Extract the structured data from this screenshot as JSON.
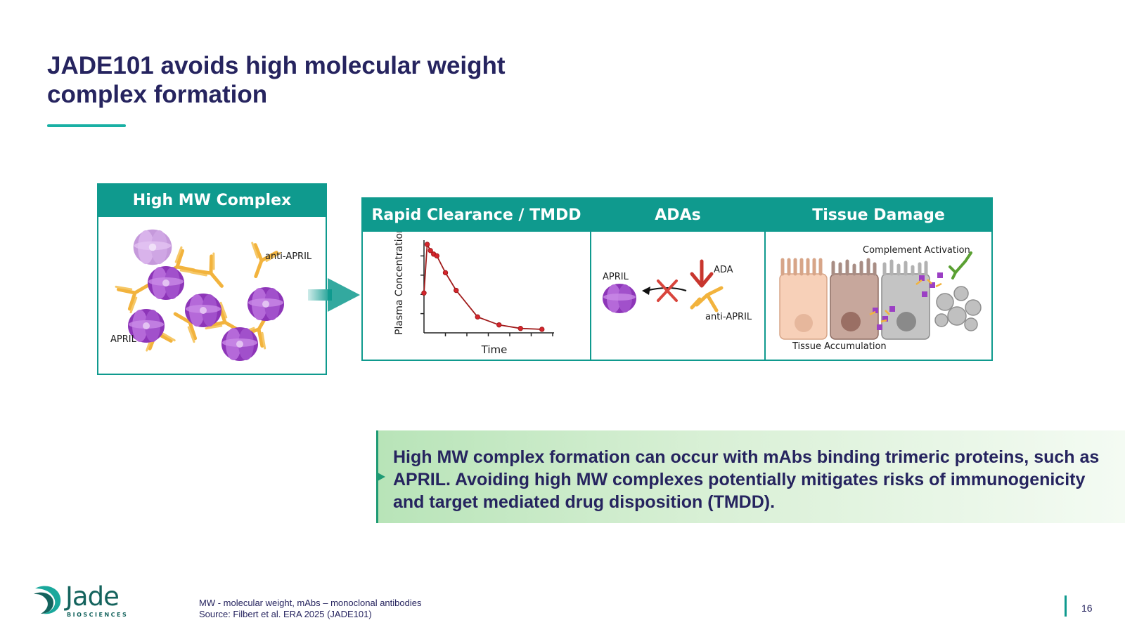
{
  "slide": {
    "title": "JADE101 avoids high molecular weight complex formation",
    "page_number": "16"
  },
  "high_mw_panel": {
    "header": "High MW Complex",
    "label_anti_april": "anti-APRIL",
    "label_april": "APRIL"
  },
  "outcome_panels": {
    "clearance": {
      "header": "Rapid Clearance / TMDD",
      "y_label": "Plasma Concentration",
      "x_label": "Time"
    },
    "adas": {
      "header": "ADAs",
      "label_april": "APRIL",
      "label_ada": "ADA",
      "label_anti_april": "anti-APRIL"
    },
    "tissue": {
      "header": "Tissue Damage",
      "label_complement": "Complement Activation",
      "label_accumulation": "Tissue Accumulation"
    }
  },
  "chart_data": {
    "type": "line",
    "title": "",
    "xlabel": "Time",
    "ylabel": "Plasma Concentration",
    "x": [
      0,
      0.3,
      0.6,
      0.9,
      1.2,
      2,
      3,
      5,
      7,
      9,
      11
    ],
    "values": [
      0.45,
      1.0,
      0.93,
      0.89,
      0.87,
      0.68,
      0.48,
      0.18,
      0.09,
      0.05,
      0.04
    ],
    "xlim": [
      0,
      12
    ],
    "ylim": [
      0,
      1
    ],
    "grid": false
  },
  "callout": {
    "text": "High MW complex formation can occur with mAbs binding trimeric proteins, such as APRIL. Avoiding high MW complexes potentially mitigates risks of immunogenicity and target mediated drug disposition (TMDD)."
  },
  "footer": {
    "logo_word": "Jade",
    "logo_sub": "BIOSCIENCES",
    "footnote_line1": "MW - molecular weight, mAbs – monoclonal antibodies",
    "footnote_line2": "Source: Filbert et al. ERA 2025 (JADE101)"
  },
  "colors": {
    "brand_teal": "#0f9a8e",
    "title_navy": "#26245f",
    "april_purple": "#9b3fc4",
    "antibody_orange": "#f2b33d",
    "ada_red": "#c8362e",
    "curve_red": "#a01b1b"
  }
}
